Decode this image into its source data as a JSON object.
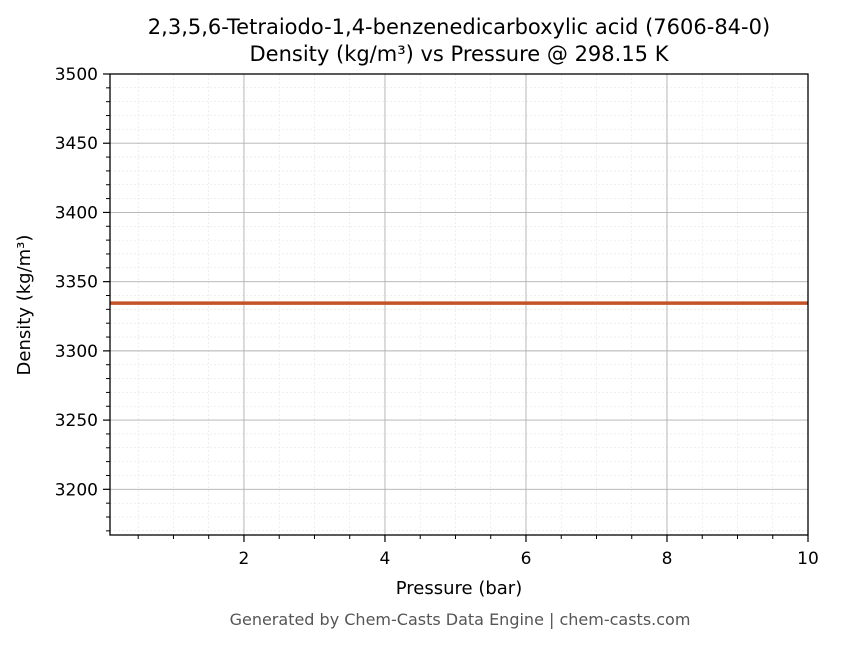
{
  "chart_data": {
    "type": "line",
    "title": "2,3,5,6-Tetraiodo-1,4-benzenedicarboxylic acid (7606-84-0)",
    "subtitle": "Density (kg/m³) vs Pressure @ 298.15 K",
    "xlabel": "Pressure (bar)",
    "ylabel": "Density (kg/m³)",
    "xlim": [
      0.1,
      10
    ],
    "ylim": [
      3167,
      3500
    ],
    "xticks": [
      2,
      4,
      6,
      8,
      10
    ],
    "yticks": [
      3200,
      3250,
      3300,
      3350,
      3400,
      3450,
      3500
    ],
    "x_minor_step": 0.5,
    "y_minor_step": 10,
    "grid": true,
    "series": [
      {
        "color": "#c4532a",
        "x": [
          0.1,
          10
        ],
        "y": [
          3334.5,
          3334.5
        ]
      }
    ]
  },
  "footer": "Generated by Chem-Casts Data Engine | chem-casts.com"
}
